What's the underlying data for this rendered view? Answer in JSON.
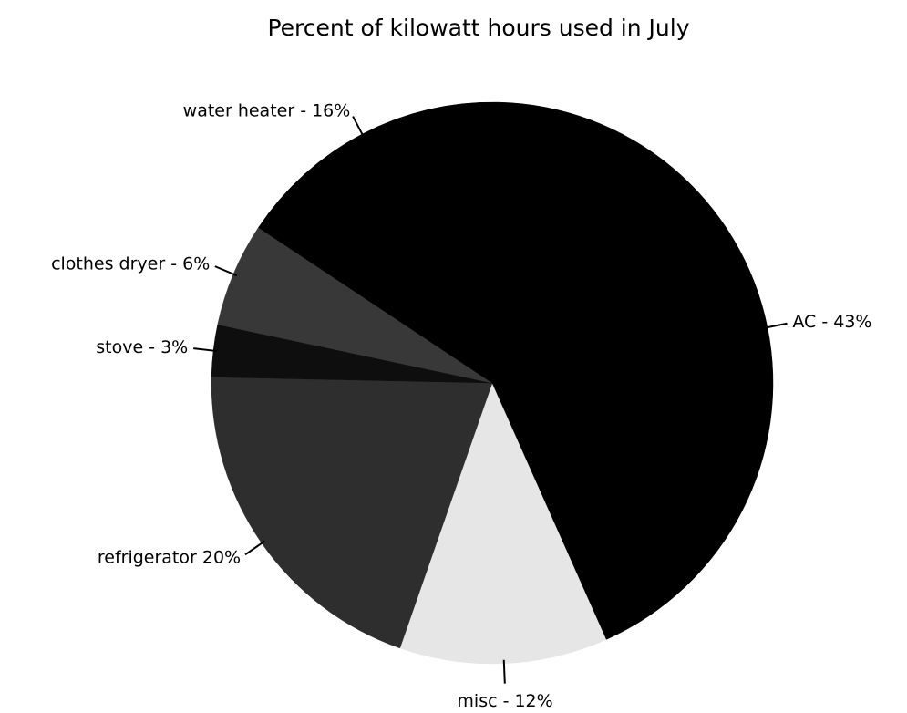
{
  "chart_data": {
    "type": "pie",
    "title": "Percent of kilowatt hours used in July",
    "values": [
      12,
      20,
      3,
      6,
      16,
      43
    ],
    "value_labels": [
      "misc - 12%",
      "refrigerator 20%",
      "stove - 3%",
      "clothes dryer - 6%",
      "water heater - 16%",
      "AC - 43%"
    ],
    "colors": [
      "#e6e6e6",
      "#2e2e2e",
      "#0e0e0e",
      "#383838",
      "#000000",
      "#000000"
    ]
  }
}
